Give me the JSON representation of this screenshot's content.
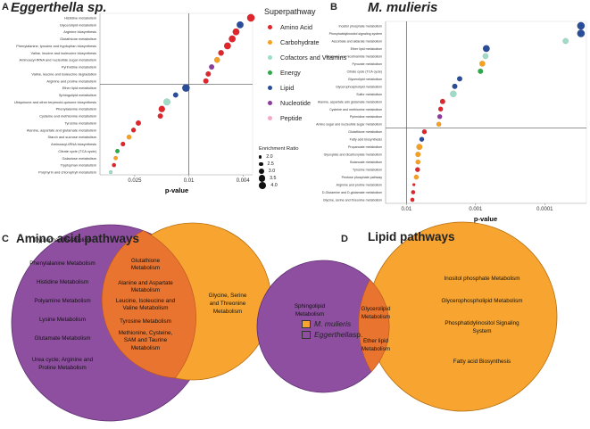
{
  "panels": {
    "a": {
      "letter": "A",
      "title": "Eggerthella sp."
    },
    "b": {
      "letter": "B",
      "title": "M. mulieris"
    },
    "c": {
      "letter": "C",
      "title": "Amino acid pathways"
    },
    "d": {
      "letter": "D",
      "title": "Lipid pathways"
    }
  },
  "legend": {
    "title": "Superpathway",
    "items": [
      {
        "label": "Amino Acid",
        "color": "#e0262c"
      },
      {
        "label": "Carbohydrate",
        "color": "#f5a020"
      },
      {
        "label": "Cofactors and Vitamins",
        "color": "#9fdcc7"
      },
      {
        "label": "Energy",
        "color": "#2fa84a"
      },
      {
        "label": "Lipid",
        "color": "#2a4d9a"
      },
      {
        "label": "Nucleotide",
        "color": "#8e3c9c"
      },
      {
        "label": "Peptide",
        "color": "#f3a9c8"
      }
    ]
  },
  "size_legend": {
    "title": "Enrichment Ratio",
    "items": [
      "2.0",
      "2.5",
      "3.0",
      "3.5",
      "4.0"
    ]
  },
  "chart_data": [
    {
      "type": "scatter",
      "title": "Eggerthella sp.",
      "xlabel": "p-value",
      "x_scale": "-log10",
      "x_ticks": [
        "0.025",
        "0.01",
        "0.004"
      ],
      "categories": [
        "Histidine metabolism",
        "Glycerolipid metabolism",
        "Arginine biosynthesis",
        "Glutathione metabolism",
        "Phenylalanine, tyrosine and tryptophan biosynthesis",
        "Valine, leucine and isoleucine biosynthesis",
        "Aminoacyl-tRNA and nucleotide sugar metabolism",
        "Pyrimidine metabolism",
        "Valine, leucine and isoleucine degradation",
        "Arginine and proline metabolism",
        "Ether lipid metabolism",
        "Sphingolipid metabolism",
        "Ubiquinone and other terpenoid-quinone biosynthesis",
        "Phenylalanine metabolism",
        "Cysteine and methionine metabolism",
        "Tyrosine metabolism",
        "Alanine, aspartate and glutamate metabolism",
        "Starch and sucrose metabolism",
        "Aminoacyl-tRNA biosynthesis",
        "Citrate cycle (TCA cycle)",
        "Galactose metabolism",
        "Tryptophan metabolism",
        "Porphyrin and chlorophyll metabolism"
      ],
      "pvalues": [
        0.0035,
        0.0042,
        0.0045,
        0.0048,
        0.0052,
        0.0058,
        0.0062,
        0.0068,
        0.0072,
        0.0075,
        0.0105,
        0.0125,
        0.0145,
        0.0158,
        0.0162,
        0.0235,
        0.0255,
        0.0275,
        0.0305,
        0.0335,
        0.0345,
        0.0355,
        0.0375
      ],
      "enrichment_ratios": [
        4.0,
        3.7,
        3.7,
        3.7,
        3.7,
        3.2,
        3.2,
        3.0,
        3.0,
        3.0,
        4.0,
        3.0,
        3.7,
        3.5,
        3.0,
        3.0,
        2.8,
        2.8,
        2.7,
        2.6,
        2.5,
        2.5,
        2.3
      ],
      "superpathways": [
        "Amino Acid",
        "Lipid",
        "Amino Acid",
        "Amino Acid",
        "Amino Acid",
        "Amino Acid",
        "Carbohydrate",
        "Nucleotide",
        "Amino Acid",
        "Amino Acid",
        "Lipid",
        "Lipid",
        "Cofactors and Vitamins",
        "Amino Acid",
        "Amino Acid",
        "Amino Acid",
        "Amino Acid",
        "Carbohydrate",
        "Amino Acid",
        "Energy",
        "Carbohydrate",
        "Amino Acid",
        "Cofactors and Vitamins"
      ],
      "threshold_p": 0.01
    },
    {
      "type": "scatter",
      "title": "M. mulieris",
      "xlabel": "p-value",
      "x_scale": "-log10",
      "x_ticks": [
        "0.01",
        "0.001",
        "0.0001"
      ],
      "categories": [
        "Inositol phosphate metabolism",
        "Phosphatidylinositol signaling system",
        "Ascorbate and aldarate metabolism",
        "Ether lipid metabolism",
        "Nicotinate and nicotinamide metabolism",
        "Pyruvate metabolism",
        "Citrate cycle (TCA cycle)",
        "Glycerolipid metabolism",
        "Glycerophospholipid metabolism",
        "Sulfur metabolism",
        "Alanine, aspartate adn glutamate metabolism",
        "Cysteine and methionine metabolism",
        "Pyrimidine metabolism",
        "Amino sugar and nucleotide sugar metabolism",
        "Glutathione metabolism",
        "Fatty acid biosynthesis",
        "Propanoate metabolism",
        "Glyoxylate and dicarboxylate metabolism",
        "Butanoate metabolism",
        "Tyrosine metabolism",
        "Pentose phosphate pathway",
        "Arginine and proline metabolism",
        "D-Glutamine and D-glutamate metabolism",
        "Glycine, serine and threonine metabolism"
      ],
      "pvalues": [
        3e-05,
        3e-05,
        5e-05,
        0.0007,
        0.00072,
        0.0008,
        0.00085,
        0.0017,
        0.002,
        0.0021,
        0.003,
        0.0032,
        0.0033,
        0.0034,
        0.0055,
        0.006,
        0.0065,
        0.0068,
        0.0068,
        0.0069,
        0.0072,
        0.0078,
        0.008,
        0.0082
      ],
      "enrichment_ratios": [
        4.0,
        4.0,
        3.2,
        3.7,
        3.2,
        3.2,
        3.0,
        3.0,
        3.0,
        3.5,
        3.0,
        2.8,
        2.8,
        2.8,
        2.8,
        2.8,
        3.3,
        3.0,
        2.8,
        2.8,
        2.8,
        2.0,
        2.5,
        2.5
      ],
      "superpathways": [
        "Lipid",
        "Lipid",
        "Cofactors and Vitamins",
        "Lipid",
        "Cofactors and Vitamins",
        "Carbohydrate",
        "Energy",
        "Lipid",
        "Lipid",
        "Cofactors and Vitamins",
        "Amino Acid",
        "Amino Acid",
        "Nucleotide",
        "Carbohydrate",
        "Amino Acid",
        "Lipid",
        "Carbohydrate",
        "Carbohydrate",
        "Carbohydrate",
        "Amino Acid",
        "Carbohydrate",
        "Amino Acid",
        "Amino Acid",
        "Amino Acid"
      ],
      "threshold_p": 0.01
    }
  ],
  "venn_c": {
    "left_only": [
      "Tryptophan Metabolism",
      "Phenylalanine Metabolism",
      "Histidine Metabolism",
      "Polyamine Metabolism",
      "Lysine Metabolism",
      "Glutamate Metabolism",
      "Urea cycle; Arginine and",
      "Proline Metabolism"
    ],
    "overlap": [
      "Glutathione",
      "Metabolism",
      "Alanine and Aspartate",
      "Metabolism",
      "Leucine, Isoleucine and",
      "Valine Metabolism",
      "Tyrosine Metabolism",
      "Methionine, Cysteine,",
      "SAM and Taurine",
      "Metabolism"
    ],
    "right_only": [
      "Glycine, Serine",
      "and Threonine",
      "Metabolism"
    ]
  },
  "venn_c_legend": [
    {
      "label": "M. mulieris",
      "color": "#f7a530"
    },
    {
      "label": "Eggerthella",
      "suffix": " sp.",
      "color": "#8e4fa0"
    }
  ],
  "venn_d": {
    "left_only": [
      "Sphingolipid",
      "Metabolism"
    ],
    "overlap": [
      "Glycerolipid",
      "Metabolism",
      "Ether lipid",
      "Metabolism"
    ],
    "right_only": [
      "Inositol phosphate Metabolism",
      "Glycerophospholipid Metabolism",
      "Phosphatidylinositol Signaling",
      "System",
      "Fatty acid Biosynthesis"
    ]
  }
}
